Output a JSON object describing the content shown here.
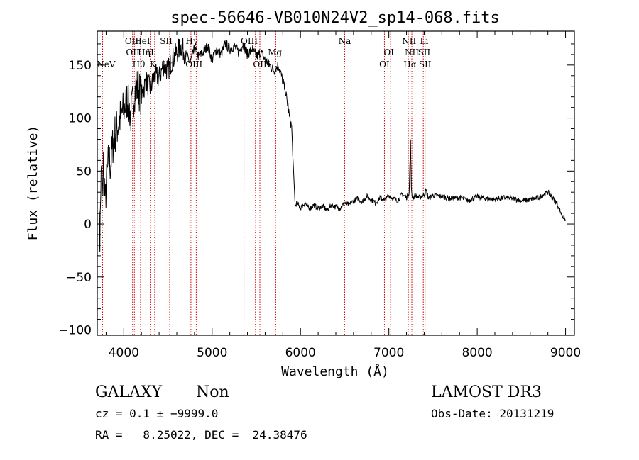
{
  "chart_data": {
    "type": "line",
    "title": "spec-56646-VB010N24V2_sp14-068.fits",
    "xlabel": "Wavelength (Å)",
    "ylabel": "Flux (relative)",
    "xlim": [
      3700,
      9100
    ],
    "ylim": [
      -105,
      182
    ],
    "x_ticks": [
      4000,
      5000,
      6000,
      7000,
      8000,
      9000
    ],
    "x_tick_labels": [
      "4000",
      "5000",
      "6000",
      "7000",
      "8000",
      "9000"
    ],
    "y_ticks": [
      -100,
      -50,
      0,
      50,
      100,
      150
    ],
    "y_tick_labels": [
      "−100",
      "−50",
      "0",
      "50",
      "100",
      "150"
    ],
    "series": [
      {
        "name": "flux",
        "x": [
          3720,
          3730,
          3740,
          3750,
          3760,
          3770,
          3790,
          3810,
          3830,
          3850,
          3870,
          3900,
          3930,
          3960,
          4000,
          4040,
          4080,
          4120,
          4160,
          4200,
          4250,
          4300,
          4350,
          4400,
          4450,
          4500,
          4550,
          4600,
          4650,
          4700,
          4750,
          4800,
          4850,
          4900,
          4950,
          5000,
          5050,
          5100,
          5150,
          5200,
          5250,
          5300,
          5350,
          5400,
          5450,
          5500,
          5550,
          5600,
          5650,
          5700,
          5750,
          5800,
          5830,
          5860,
          5880,
          5900,
          5920,
          5940,
          5960,
          6000,
          6050,
          6100,
          6150,
          6200,
          6250,
          6300,
          6350,
          6400,
          6450,
          6500,
          6550,
          6600,
          6650,
          6700,
          6750,
          6800,
          6850,
          6900,
          6950,
          7000,
          7050,
          7100,
          7150,
          7200,
          7230,
          7245,
          7255,
          7270,
          7300,
          7350,
          7400,
          7420,
          7450,
          7500,
          7600,
          7700,
          7800,
          7900,
          8000,
          8100,
          8200,
          8300,
          8400,
          8500,
          8600,
          8700,
          8750,
          8800,
          8850,
          8900,
          8950,
          9000
        ],
        "y": [
          0,
          -15,
          35,
          50,
          25,
          60,
          20,
          45,
          62,
          55,
          72,
          85,
          92,
          100,
          108,
          118,
          102,
          125,
          130,
          120,
          135,
          128,
          140,
          138,
          150,
          145,
          155,
          162,
          168,
          160,
          152,
          165,
          158,
          162,
          168,
          155,
          165,
          160,
          170,
          165,
          168,
          162,
          170,
          160,
          165,
          158,
          162,
          155,
          150,
          145,
          150,
          135,
          125,
          110,
          98,
          92,
          50,
          17,
          20,
          15,
          20,
          14,
          18,
          15,
          17,
          13,
          18,
          16,
          15,
          20,
          18,
          22,
          24,
          21,
          26,
          23,
          20,
          25,
          22,
          27,
          24,
          22,
          28,
          25,
          30,
          78,
          32,
          24,
          27,
          25,
          28,
          32,
          24,
          27,
          26,
          24,
          25,
          22,
          26,
          24,
          23,
          25,
          24,
          22,
          23,
          25,
          28,
          30,
          25,
          20,
          10,
          3
        ]
      }
    ],
    "line_labels": [
      {
        "name": "NeV",
        "x": 3800,
        "text": "NeV",
        "row": 3
      },
      {
        "name": "OII",
        "x": 4090,
        "text": "OII",
        "row": 1
      },
      {
        "name": "OII-2",
        "x": 4102,
        "text": "OII",
        "row": 2
      },
      {
        "name": "Hbeta-theta",
        "x": 4170,
        "text": "Hθ",
        "row": 3
      },
      {
        "name": "HeI",
        "x": 4210,
        "text": "HeI",
        "row": 1
      },
      {
        "name": "H-eta",
        "x": 4230,
        "text": "Hη",
        "row": 2
      },
      {
        "name": "H-zeta",
        "x": 4300,
        "text": "H",
        "row": 2
      },
      {
        "name": "K",
        "x": 4330,
        "text": "K",
        "row": 3
      },
      {
        "name": "SII",
        "x": 4480,
        "text": "SII",
        "row": 1
      },
      {
        "name": "Hdelta",
        "x": 4500,
        "text": "Ho",
        "row": 3
      },
      {
        "name": "Hgamma",
        "x": 4770,
        "text": "Hγ",
        "row": 1
      },
      {
        "name": "OIII-a",
        "x": 4795,
        "text": "OIII",
        "row": 3
      },
      {
        "name": "OIII-b",
        "x": 5420,
        "text": "OIII",
        "row": 1
      },
      {
        "name": "Hbeta",
        "x": 5440,
        "text": "Hβ",
        "row": 2
      },
      {
        "name": "OIII-c",
        "x": 5560,
        "text": "OIII",
        "row": 3
      },
      {
        "name": "Mg",
        "x": 5710,
        "text": "Mg",
        "row": 2
      },
      {
        "name": "Na",
        "x": 6500,
        "text": "Na",
        "row": 1
      },
      {
        "name": "OI-a",
        "x": 6950,
        "text": "OI",
        "row": 3
      },
      {
        "name": "OI-b",
        "x": 7000,
        "text": "OI",
        "row": 2
      },
      {
        "name": "NII-a",
        "x": 7230,
        "text": "NII",
        "row": 1
      },
      {
        "name": "Halpha",
        "x": 7240,
        "text": "Hα",
        "row": 3
      },
      {
        "name": "NII-b",
        "x": 7260,
        "text": "NII",
        "row": 2
      },
      {
        "name": "Li",
        "x": 7400,
        "text": "Li",
        "row": 1
      },
      {
        "name": "SII-a",
        "x": 7400,
        "text": "SII",
        "row": 2
      },
      {
        "name": "SII-b",
        "x": 7410,
        "text": "SII",
        "row": 3
      }
    ],
    "line_marker_x": [
      3760,
      4100,
      4120,
      4190,
      4250,
      4300,
      4350,
      4520,
      4760,
      4820,
      5360,
      5490,
      5540,
      5720,
      6500,
      6950,
      7020,
      7220,
      7240,
      7260,
      7390,
      7410
    ]
  },
  "footer": {
    "class_label": "GALAXY",
    "subclass_label": "Non",
    "cz_text": "cz = 0.1 ± −9999.0",
    "radec_text": "RA =   8.25022, DEC =  24.38476",
    "survey": "LAMOST DR3",
    "obs_date": "Obs-Date: 20131219"
  },
  "colors": {
    "axis": "#000000",
    "spectrum": "#000000",
    "line_marker": "#cc0000"
  }
}
